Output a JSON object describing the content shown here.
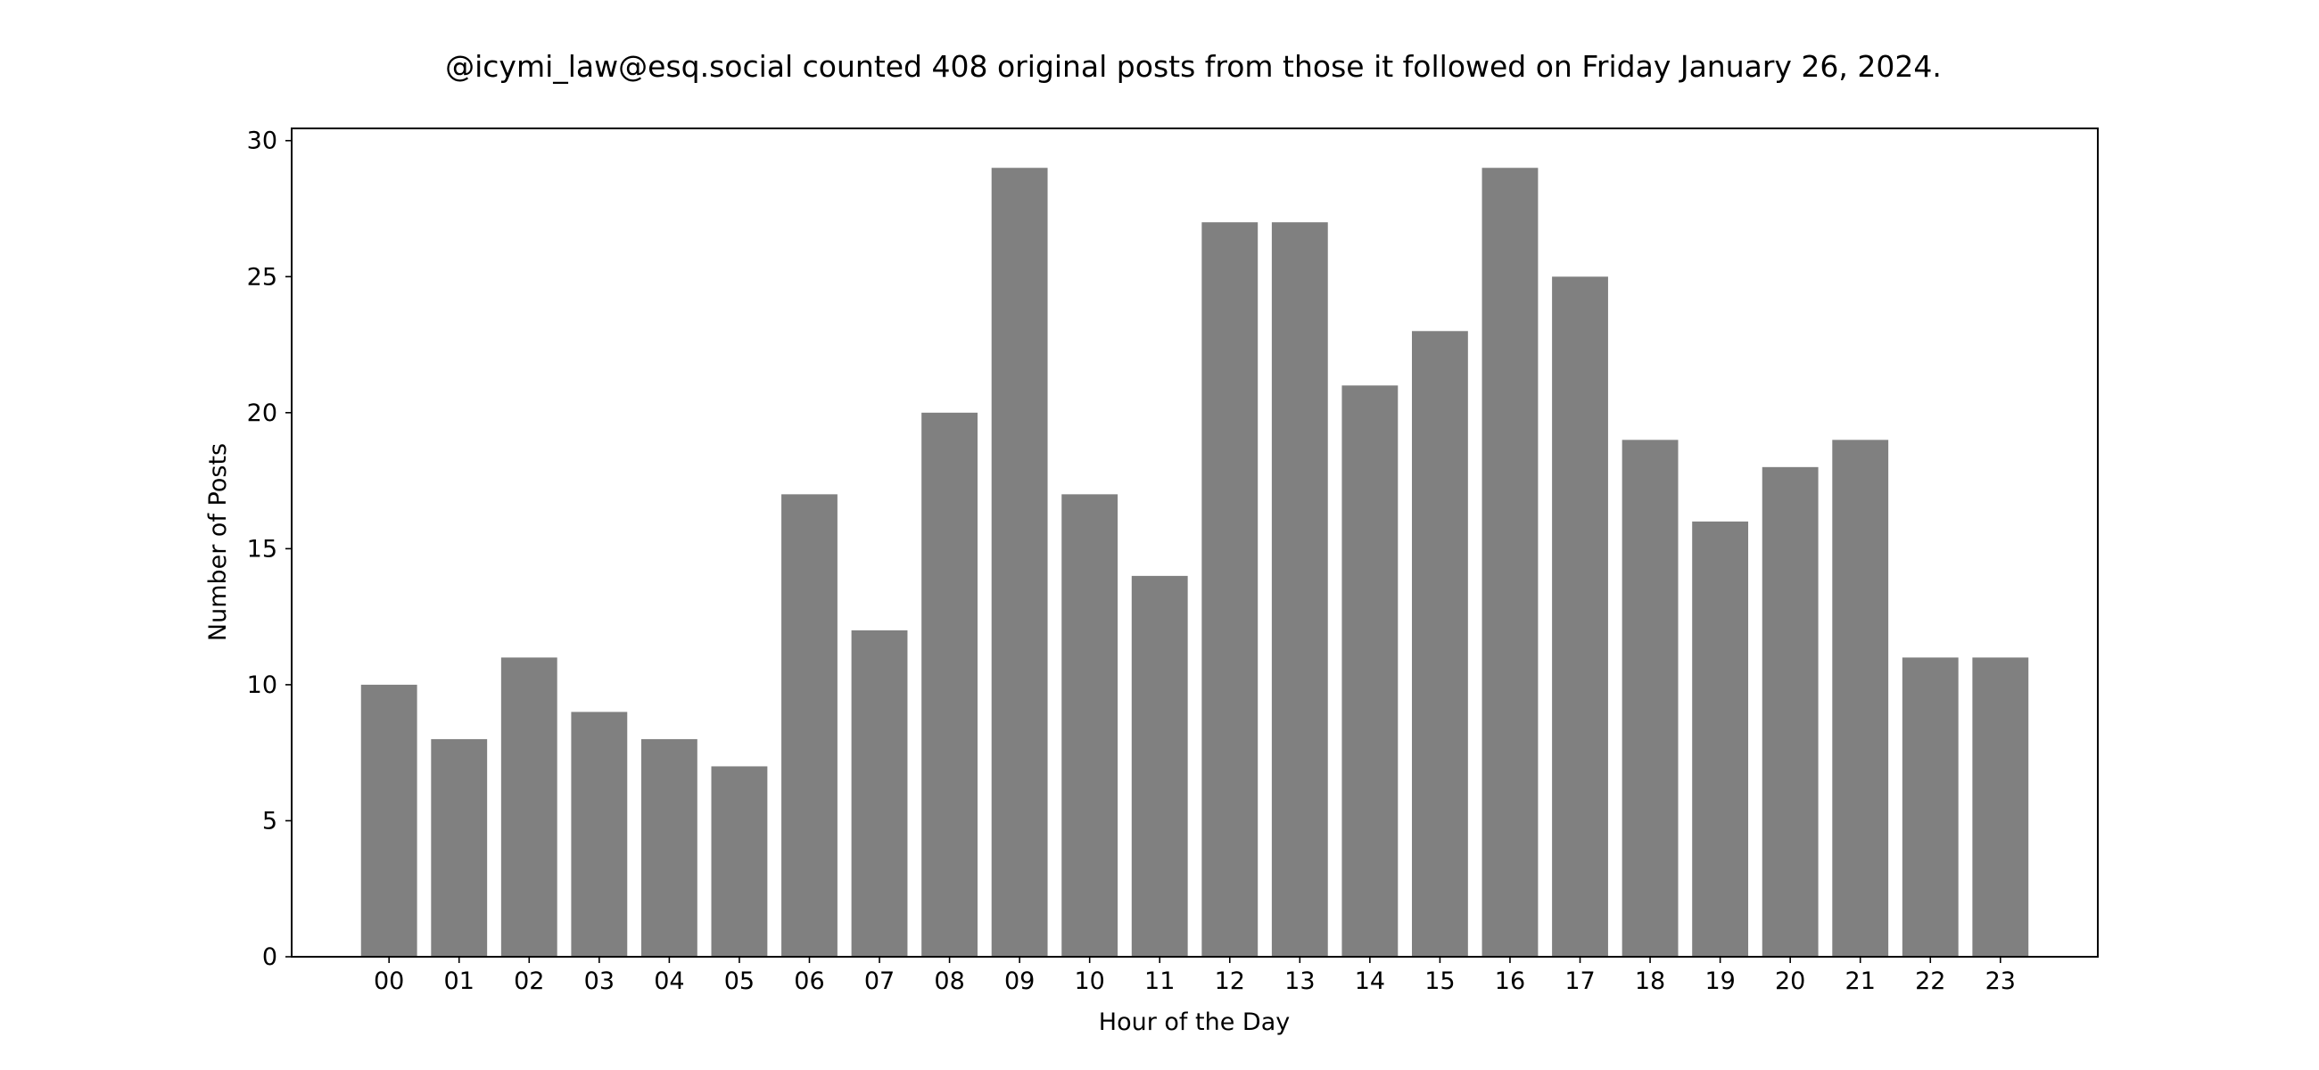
{
  "chart_data": {
    "type": "bar",
    "title": "@icymi_law@esq.social counted 408 original posts from those it followed on Friday January 26, 2024.",
    "xlabel": "Hour of the Day",
    "ylabel": "Number of Posts",
    "categories": [
      "00",
      "01",
      "02",
      "03",
      "04",
      "05",
      "06",
      "07",
      "08",
      "09",
      "10",
      "11",
      "12",
      "13",
      "14",
      "15",
      "16",
      "17",
      "18",
      "19",
      "20",
      "21",
      "22",
      "23"
    ],
    "values": [
      10,
      8,
      11,
      9,
      8,
      7,
      17,
      12,
      20,
      29,
      17,
      14,
      27,
      27,
      21,
      23,
      29,
      25,
      19,
      16,
      18,
      19,
      11,
      11
    ],
    "ylim": [
      0,
      30.45
    ],
    "yticks": [
      0,
      5,
      10,
      15,
      20,
      25,
      30
    ],
    "bar_color": "#808080",
    "grid": false,
    "legend": false
  }
}
